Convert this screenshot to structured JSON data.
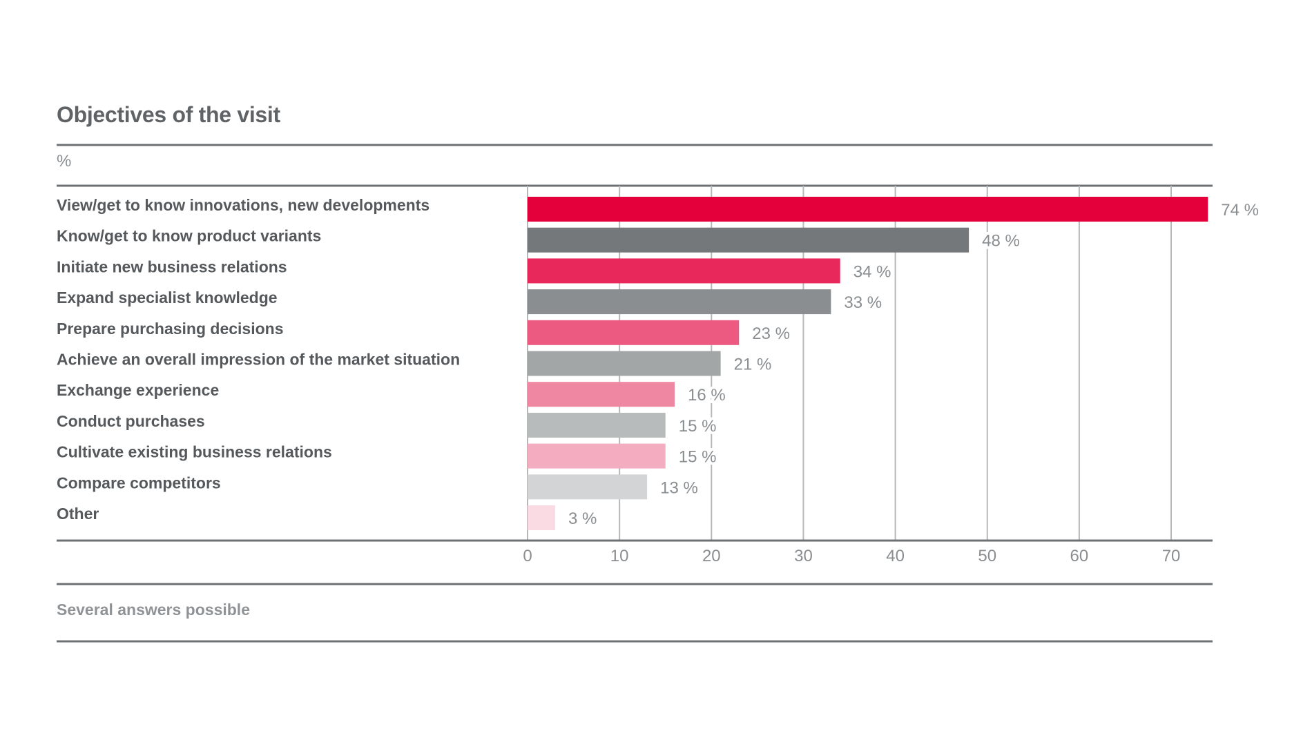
{
  "chart_data": {
    "type": "bar",
    "orientation": "horizontal",
    "title": "Objectives of the visit",
    "unit_label": "%",
    "footnote": "Several answers possible",
    "categories": [
      "View/get to know innovations, new developments",
      "Know/get to know product variants",
      "Initiate new business relations",
      "Expand specialist knowledge",
      "Prepare purchasing decisions",
      "Achieve an overall impression of the market situation",
      "Exchange experience",
      "Conduct purchases",
      "Cultivate existing business relations",
      "Compare competitors",
      "Other"
    ],
    "values": [
      74,
      48,
      34,
      33,
      23,
      21,
      16,
      15,
      15,
      13,
      3
    ],
    "value_labels": [
      "74 %",
      "48 %",
      "34 %",
      "33 %",
      "23 %",
      "21 %",
      "16 %",
      "15 %",
      "15 %",
      "13 %",
      "3 %"
    ],
    "colors": [
      "#e4003a",
      "#74787b",
      "#e8275b",
      "#8a8e90",
      "#ec5a81",
      "#a2a6a7",
      "#f087a2",
      "#b8bbbc",
      "#f4adc0",
      "#d2d4d5",
      "#fadbe3"
    ],
    "xticks": [
      0,
      10,
      20,
      30,
      40,
      50,
      60,
      70
    ],
    "xlim": [
      0,
      74
    ],
    "grid": "vertical"
  }
}
